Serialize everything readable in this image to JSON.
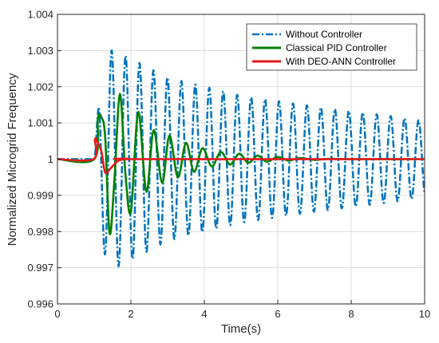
{
  "chart_data": {
    "type": "line",
    "title": "",
    "xlabel": "Time(s)",
    "ylabel": "Normalized Microgrid Frequency",
    "xlim": [
      0,
      10
    ],
    "ylim": [
      0.996,
      1.004
    ],
    "xticks": [
      0,
      2,
      4,
      6,
      8,
      10
    ],
    "xtick_labels": [
      "0",
      "2",
      "4",
      "6",
      "8",
      "10"
    ],
    "yticks": [
      0.996,
      0.997,
      0.998,
      0.999,
      1,
      1.001,
      1.002,
      1.003,
      1.004
    ],
    "ytick_labels": [
      "0.996",
      "0.997",
      "0.998",
      "0.999",
      "1",
      "1.001",
      "1.002",
      "1.003",
      "1.004"
    ],
    "grid": true,
    "legend_position": "top-right",
    "series": [
      {
        "name": "Without Controller",
        "color": "#0072BD",
        "style": "dash-dot",
        "disturbance_time": 1.0,
        "period": 0.38,
        "envelope_peaks": [
          {
            "t": 1.0,
            "amplitude": 0.0
          },
          {
            "t": 1.15,
            "amplitude": 0.0019
          },
          {
            "t": 1.36,
            "amplitude": 0.003
          },
          {
            "t": 1.58,
            "amplitude": 0.003
          },
          {
            "t": 3.0,
            "amplitude": 0.00225
          },
          {
            "t": 5.0,
            "amplitude": 0.00175
          },
          {
            "t": 7.0,
            "amplitude": 0.00145
          },
          {
            "t": 9.0,
            "amplitude": 0.0012
          },
          {
            "t": 10.0,
            "amplitude": 0.00105
          }
        ],
        "summary": {
          "first_max": 1.0019,
          "peak_max": 1.003,
          "peak_min": 0.99695,
          "final_max": 1.00105,
          "final_min": 0.99885
        }
      },
      {
        "name": "Classical PID Controller",
        "color": "#008000",
        "style": "solid",
        "x": [
          0,
          1.0,
          1.1,
          1.2,
          1.3,
          1.42,
          1.55,
          1.7,
          1.85,
          2.0,
          2.2,
          2.42,
          2.62,
          2.85,
          3.05,
          3.28,
          3.5,
          3.72,
          3.95,
          4.2,
          4.45,
          4.7,
          4.95,
          5.2,
          5.45,
          5.7,
          6.0,
          6.3,
          6.6,
          7.0,
          7.4,
          8.0,
          10.0
        ],
        "y": [
          1.0,
          1.0,
          1.00112,
          1.00115,
          1.0006,
          0.99795,
          0.9994,
          1.0018,
          0.9996,
          0.99855,
          1.0013,
          0.9991,
          1.0008,
          0.99935,
          1.00065,
          0.9995,
          1.00045,
          0.99965,
          1.0003,
          0.9998,
          1.0002,
          0.99985,
          1.00015,
          0.9999,
          1.0001,
          0.99993,
          1.00006,
          0.99996,
          1.00003,
          0.99998,
          1.00001,
          1.0,
          1.0
        ]
      },
      {
        "name": "With DEO-ANN Controller",
        "color": "#E41A1C",
        "style": "solid",
        "x": [
          0,
          0.98,
          1.02,
          1.1,
          1.2,
          1.3,
          1.45,
          1.65,
          1.9,
          2.2,
          10.0
        ],
        "y": [
          1.0,
          1.0,
          1.00055,
          1.00045,
          1.0002,
          0.99963,
          0.99975,
          0.99995,
          1.00001,
          1.0,
          1.0
        ]
      }
    ]
  }
}
